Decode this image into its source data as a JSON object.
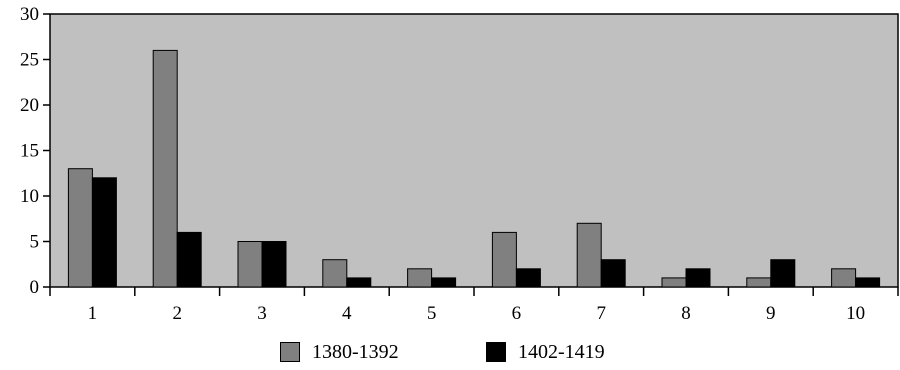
{
  "chart_data": {
    "type": "bar",
    "categories": [
      "1",
      "2",
      "3",
      "4",
      "5",
      "6",
      "7",
      "8",
      "9",
      "10"
    ],
    "series": [
      {
        "name": "1380-1392",
        "color": "#808080",
        "values": [
          13,
          26,
          5,
          3,
          2,
          6,
          7,
          1,
          1,
          2
        ]
      },
      {
        "name": "1402-1419",
        "color": "#000000",
        "values": [
          12,
          6,
          5,
          1,
          1,
          2,
          3,
          2,
          3,
          1
        ]
      }
    ],
    "ylim": [
      0,
      30
    ],
    "yticks": [
      "0",
      "5",
      "10",
      "15",
      "20",
      "25",
      "30"
    ],
    "plot_background": "#c0c0c0",
    "grid": false,
    "legend_position": "bottom",
    "title": "",
    "xlabel": "",
    "ylabel": ""
  }
}
